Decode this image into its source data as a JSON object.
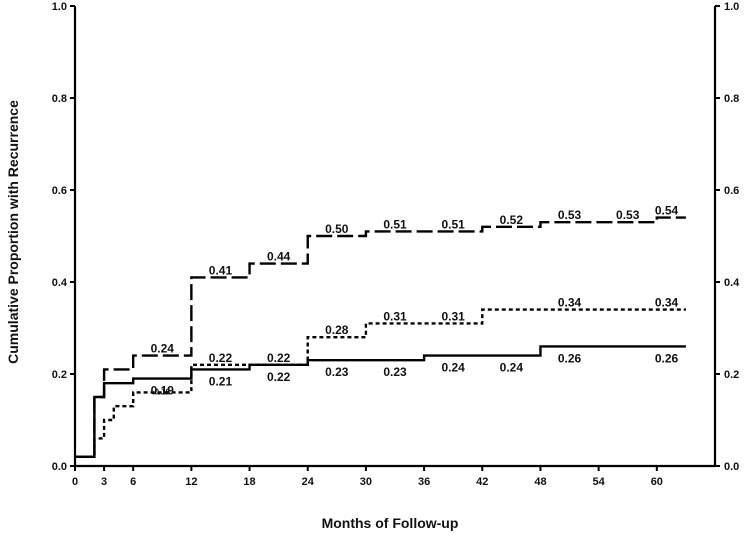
{
  "chart_data": {
    "type": "line",
    "step": true,
    "xlabel": "Months of Follow-up",
    "ylabel": "Cumulative Proportion with Recurrence",
    "xlim": [
      0,
      66
    ],
    "ylim": [
      0,
      1.0
    ],
    "x_ticks": [
      0,
      3,
      6,
      12,
      18,
      24,
      30,
      36,
      42,
      48,
      54,
      60
    ],
    "x_tick_labels": [
      "0",
      "3",
      "6",
      "12",
      "18",
      "24",
      "30",
      "36",
      "42",
      "48",
      "54",
      "60"
    ],
    "y_ticks": [
      0,
      0.2,
      0.4,
      0.6,
      0.8,
      1.0
    ],
    "y_tick_labels": [
      "0.0",
      "0.2",
      "0.4",
      "0.6",
      "0.8",
      "1.0"
    ],
    "right_y_tick_labels": [
      "0.0",
      "0.2",
      "0.4",
      "0.6",
      "0.8",
      "1.0"
    ],
    "grid": false,
    "series": [
      {
        "style": "dashed",
        "steps": [
          [
            0,
            0.02
          ],
          [
            2,
            0.15
          ],
          [
            3,
            0.21
          ],
          [
            6,
            0.24
          ],
          [
            12,
            0.41
          ],
          [
            18,
            0.44
          ],
          [
            24,
            0.5
          ],
          [
            30,
            0.51
          ],
          [
            36,
            0.51
          ],
          [
            42,
            0.52
          ],
          [
            48,
            0.53
          ],
          [
            54,
            0.53
          ],
          [
            60,
            0.54
          ]
        ],
        "x_end": 63,
        "labels": [
          {
            "x": 9,
            "y": 0.24,
            "text": "0.24"
          },
          {
            "x": 15,
            "y": 0.41,
            "text": "0.41"
          },
          {
            "x": 21,
            "y": 0.44,
            "text": "0.44"
          },
          {
            "x": 27,
            "y": 0.5,
            "text": "0.50"
          },
          {
            "x": 33,
            "y": 0.51,
            "text": "0.51"
          },
          {
            "x": 39,
            "y": 0.51,
            "text": "0.51"
          },
          {
            "x": 45,
            "y": 0.52,
            "text": "0.52"
          },
          {
            "x": 51,
            "y": 0.53,
            "text": "0.53"
          },
          {
            "x": 57,
            "y": 0.53,
            "text": "0.53"
          },
          {
            "x": 61,
            "y": 0.54,
            "text": "0.54"
          }
        ]
      },
      {
        "style": "dotted",
        "steps": [
          [
            0,
            0.02
          ],
          [
            2,
            0.06
          ],
          [
            3,
            0.1
          ],
          [
            4,
            0.13
          ],
          [
            6,
            0.16
          ],
          [
            12,
            0.22
          ],
          [
            24,
            0.28
          ],
          [
            30,
            0.31
          ],
          [
            42,
            0.34
          ]
        ],
        "x_end": 63,
        "labels": [
          {
            "x": 9,
            "y": 0.16,
            "text": "0.16"
          },
          {
            "x": 15,
            "y": 0.22,
            "text": "0.22"
          },
          {
            "x": 21,
            "y": 0.22,
            "text": "0.22"
          },
          {
            "x": 27,
            "y": 0.28,
            "text": "0.28"
          },
          {
            "x": 33,
            "y": 0.31,
            "text": "0.31"
          },
          {
            "x": 39,
            "y": 0.31,
            "text": "0.31"
          },
          {
            "x": 51,
            "y": 0.34,
            "text": "0.34"
          },
          {
            "x": 61,
            "y": 0.34,
            "text": "0.34"
          }
        ]
      },
      {
        "style": "solid",
        "steps": [
          [
            0,
            0.02
          ],
          [
            2,
            0.15
          ],
          [
            3,
            0.18
          ],
          [
            6,
            0.19
          ],
          [
            12,
            0.21
          ],
          [
            18,
            0.22
          ],
          [
            24,
            0.23
          ],
          [
            36,
            0.24
          ],
          [
            48,
            0.26
          ]
        ],
        "x_end": 63,
        "labels": [
          {
            "x": 9,
            "y": 0.19,
            "text": "0.19"
          },
          {
            "x": 15,
            "y": 0.21,
            "text": "0.21"
          },
          {
            "x": 21,
            "y": 0.22,
            "text": "0.22"
          },
          {
            "x": 27,
            "y": 0.23,
            "text": "0.23"
          },
          {
            "x": 33,
            "y": 0.23,
            "text": "0.23"
          },
          {
            "x": 39,
            "y": 0.24,
            "text": "0.24"
          },
          {
            "x": 45,
            "y": 0.24,
            "text": "0.24"
          },
          {
            "x": 51,
            "y": 0.26,
            "text": "0.26"
          },
          {
            "x": 61,
            "y": 0.26,
            "text": "0.26"
          }
        ]
      }
    ]
  }
}
